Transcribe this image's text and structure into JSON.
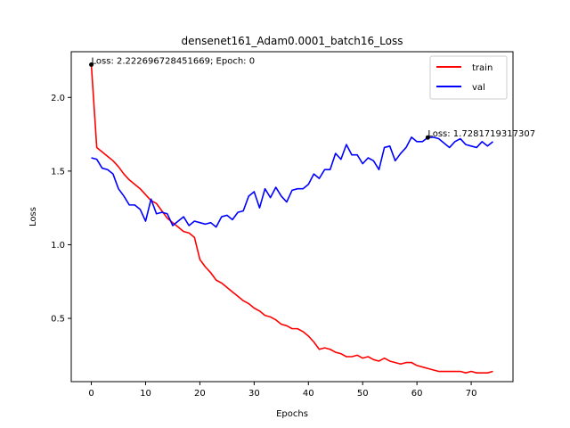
{
  "chart_data": {
    "type": "line",
    "title": "densenet161_Adam0.0001_batch16_Loss",
    "xlabel": "Epochs",
    "ylabel": "Loss",
    "xlim": [
      -3.7,
      77.7
    ],
    "ylim": [
      0.0705,
      2.3105
    ],
    "xticks": [
      0,
      10,
      20,
      30,
      40,
      50,
      60,
      70
    ],
    "xtick_labels": [
      "0",
      "10",
      "20",
      "30",
      "40",
      "50",
      "60",
      "70"
    ],
    "yticks": [
      0.5,
      1.0,
      1.5,
      2.0
    ],
    "ytick_labels": [
      "0.5",
      "1.0",
      "1.5",
      "2.0"
    ],
    "grid": false,
    "legend_position": "top-right",
    "series": [
      {
        "name": "train",
        "color": "#ff0000",
        "x": [
          0,
          1,
          2,
          3,
          4,
          5,
          6,
          7,
          8,
          9,
          10,
          11,
          12,
          13,
          14,
          15,
          16,
          17,
          18,
          19,
          20,
          21,
          22,
          23,
          24,
          25,
          26,
          27,
          28,
          29,
          30,
          31,
          32,
          33,
          34,
          35,
          36,
          37,
          38,
          39,
          40,
          41,
          42,
          43,
          44,
          45,
          46,
          47,
          48,
          49,
          50,
          51,
          52,
          53,
          54,
          55,
          56,
          57,
          58,
          59,
          60,
          61,
          62,
          63,
          64,
          65,
          66,
          67,
          68,
          69,
          70,
          71,
          72,
          73,
          74
        ],
        "values": [
          2.2227,
          1.66,
          1.63,
          1.6,
          1.57,
          1.53,
          1.48,
          1.44,
          1.41,
          1.38,
          1.34,
          1.3,
          1.28,
          1.23,
          1.18,
          1.15,
          1.12,
          1.09,
          1.08,
          1.05,
          0.9,
          0.85,
          0.81,
          0.76,
          0.74,
          0.71,
          0.68,
          0.65,
          0.62,
          0.6,
          0.57,
          0.55,
          0.52,
          0.51,
          0.49,
          0.46,
          0.45,
          0.43,
          0.43,
          0.41,
          0.38,
          0.34,
          0.29,
          0.3,
          0.29,
          0.27,
          0.26,
          0.24,
          0.24,
          0.25,
          0.23,
          0.24,
          0.22,
          0.21,
          0.23,
          0.21,
          0.2,
          0.19,
          0.2,
          0.2,
          0.18,
          0.17,
          0.16,
          0.15,
          0.14,
          0.14,
          0.14,
          0.14,
          0.14,
          0.13,
          0.14,
          0.13,
          0.13,
          0.13,
          0.14
        ]
      },
      {
        "name": "val",
        "color": "#0000ff",
        "x": [
          0,
          1,
          2,
          3,
          4,
          5,
          6,
          7,
          8,
          9,
          10,
          11,
          12,
          13,
          14,
          15,
          16,
          17,
          18,
          19,
          20,
          21,
          22,
          23,
          24,
          25,
          26,
          27,
          28,
          29,
          30,
          31,
          32,
          33,
          34,
          35,
          36,
          37,
          38,
          39,
          40,
          41,
          42,
          43,
          44,
          45,
          46,
          47,
          48,
          49,
          50,
          51,
          52,
          53,
          54,
          55,
          56,
          57,
          58,
          59,
          60,
          61,
          62,
          63,
          64,
          65,
          66,
          67,
          68,
          69,
          70,
          71,
          72,
          73,
          74
        ],
        "values": [
          1.59,
          1.58,
          1.52,
          1.51,
          1.48,
          1.38,
          1.33,
          1.27,
          1.27,
          1.24,
          1.16,
          1.31,
          1.21,
          1.22,
          1.21,
          1.13,
          1.16,
          1.19,
          1.13,
          1.16,
          1.15,
          1.14,
          1.15,
          1.12,
          1.19,
          1.2,
          1.17,
          1.22,
          1.23,
          1.33,
          1.36,
          1.25,
          1.38,
          1.32,
          1.39,
          1.33,
          1.29,
          1.37,
          1.38,
          1.38,
          1.41,
          1.48,
          1.45,
          1.51,
          1.51,
          1.62,
          1.58,
          1.68,
          1.61,
          1.61,
          1.55,
          1.59,
          1.57,
          1.51,
          1.66,
          1.67,
          1.57,
          1.62,
          1.66,
          1.73,
          1.7,
          1.7,
          1.7281,
          1.73,
          1.72,
          1.69,
          1.66,
          1.7,
          1.72,
          1.68,
          1.67,
          1.66,
          1.7,
          1.67,
          1.7
        ]
      }
    ],
    "annotations": [
      {
        "label": "Loss: 2.222696728451669; Epoch: 0",
        "x": 0,
        "y": 2.2227,
        "series": 0
      },
      {
        "label": "Loss: 1.7281719317307",
        "x": 62,
        "y": 1.7281,
        "series": 1
      }
    ]
  }
}
